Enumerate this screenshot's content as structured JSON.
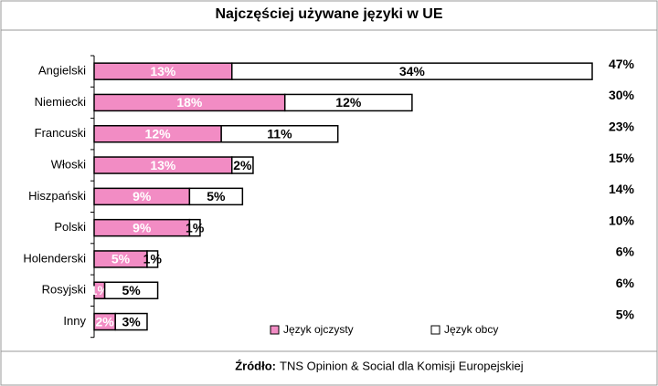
{
  "chart_data": {
    "type": "stacked-bar",
    "orientation": "horizontal",
    "title": "Najczęściej używane języki w UE",
    "categories": [
      "Angielski",
      "Niemiecki",
      "Francuski",
      "Włoski",
      "Hiszpański",
      "Polski",
      "Holenderski",
      "Rosyjski",
      "Inny"
    ],
    "series": [
      {
        "name": "Język ojczysty",
        "color": "#f28cc4",
        "values": [
          13,
          18,
          12,
          13,
          9,
          9,
          5,
          1,
          2
        ],
        "value_labels": [
          "13%",
          "18%",
          "12%",
          "13%",
          "9%",
          "9%",
          "5%",
          "1%",
          "2%"
        ]
      },
      {
        "name": "Język obcy",
        "color": "#ffffff",
        "values": [
          34,
          12,
          11,
          2,
          5,
          1,
          1,
          5,
          3
        ],
        "value_labels": [
          "34%",
          "12%",
          "11%",
          "2%",
          "5%",
          "1%",
          "1%",
          "5%",
          "3%"
        ]
      }
    ],
    "totals": [
      47,
      30,
      23,
      15,
      14,
      10,
      6,
      6,
      5
    ],
    "total_labels": [
      "47%",
      "30%",
      "23%",
      "15%",
      "14%",
      "10%",
      "6%",
      "6%",
      "5%"
    ],
    "source_label": "Źródło:",
    "source": "TNS Opinion & Social dla Komisji Europejskiej"
  }
}
